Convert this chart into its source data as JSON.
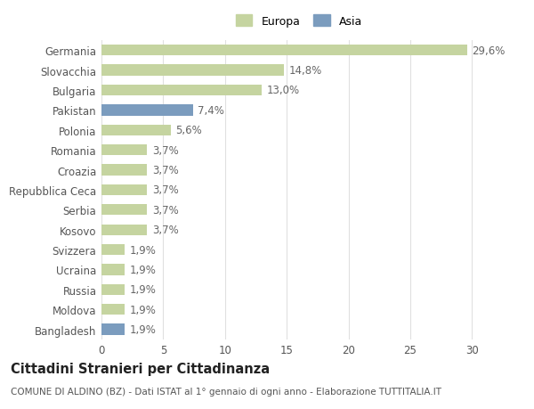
{
  "categories": [
    "Germania",
    "Slovacchia",
    "Bulgaria",
    "Pakistan",
    "Polonia",
    "Romania",
    "Croazia",
    "Repubblica Ceca",
    "Serbia",
    "Kosovo",
    "Svizzera",
    "Ucraina",
    "Russia",
    "Moldova",
    "Bangladesh"
  ],
  "values": [
    29.6,
    14.8,
    13.0,
    7.4,
    5.6,
    3.7,
    3.7,
    3.7,
    3.7,
    3.7,
    1.9,
    1.9,
    1.9,
    1.9,
    1.9
  ],
  "labels": [
    "29,6%",
    "14,8%",
    "13,0%",
    "7,4%",
    "5,6%",
    "3,7%",
    "3,7%",
    "3,7%",
    "3,7%",
    "3,7%",
    "1,9%",
    "1,9%",
    "1,9%",
    "1,9%",
    "1,9%"
  ],
  "continent": [
    "Europa",
    "Europa",
    "Europa",
    "Asia",
    "Europa",
    "Europa",
    "Europa",
    "Europa",
    "Europa",
    "Europa",
    "Europa",
    "Europa",
    "Europa",
    "Europa",
    "Asia"
  ],
  "color_europa": "#c5d4a0",
  "color_asia": "#7b9cbe",
  "xlim": [
    0,
    32
  ],
  "xticks": [
    0,
    5,
    10,
    15,
    20,
    25,
    30
  ],
  "title": "Cittadini Stranieri per Cittadinanza",
  "subtitle": "COMUNE DI ALDINO (BZ) - Dati ISTAT al 1° gennaio di ogni anno - Elaborazione TUTTITALIA.IT",
  "legend_europa": "Europa",
  "legend_asia": "Asia",
  "background_color": "#ffffff",
  "grid_color": "#e0e0e0",
  "bar_height": 0.55,
  "label_fontsize": 8.5,
  "tick_fontsize": 8.5,
  "title_fontsize": 10.5,
  "subtitle_fontsize": 7.5
}
